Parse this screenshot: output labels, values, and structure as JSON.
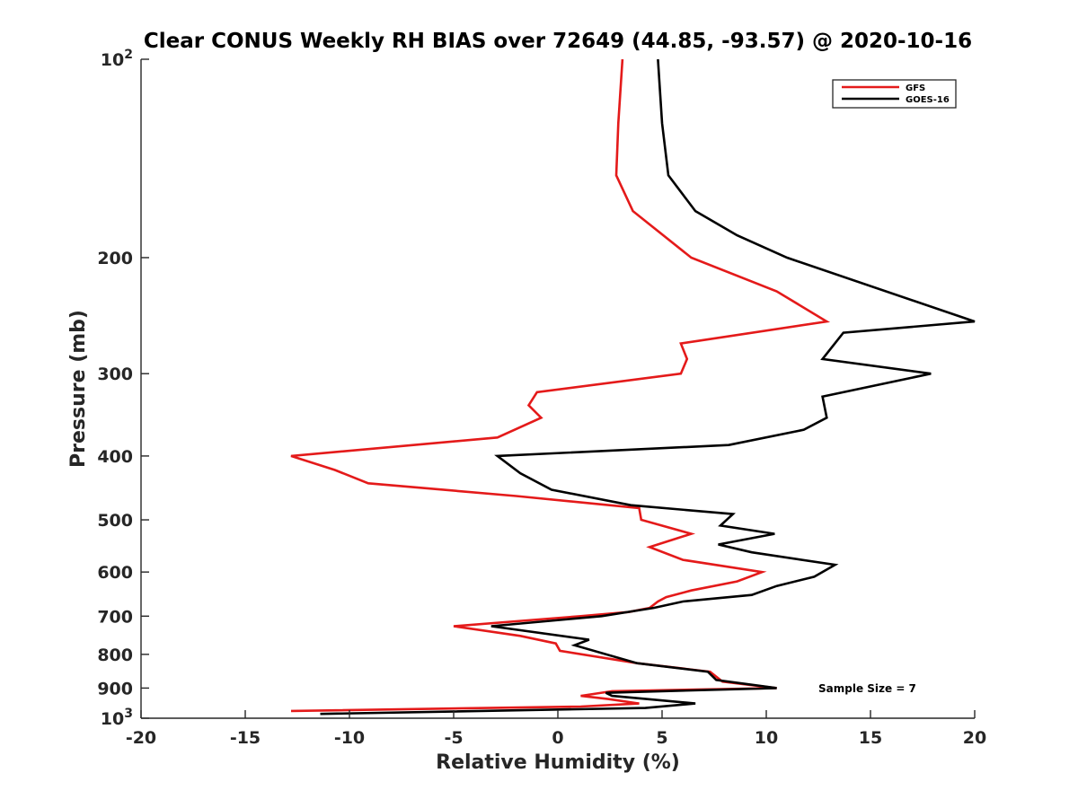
{
  "chart_data": {
    "type": "line",
    "title": "Clear CONUS Weekly RH BIAS over 72649 (44.85, -93.57) @ 2020-10-16",
    "xlabel": "Relative Humidity (%)",
    "ylabel": "Pressure (mb)",
    "xlim": [
      -20,
      20
    ],
    "ylim": [
      100,
      1000
    ],
    "y_scale": "log",
    "y_reversed": true,
    "x_ticks": [
      "-20",
      "-15",
      "-10",
      "-5",
      "0",
      "5",
      "10",
      "15",
      "20"
    ],
    "y_ticks": [
      {
        "value": 100,
        "label": "10",
        "sup": "2"
      },
      {
        "value": 200,
        "label": "200",
        "sup": ""
      },
      {
        "value": 300,
        "label": "300",
        "sup": ""
      },
      {
        "value": 400,
        "label": "400",
        "sup": ""
      },
      {
        "value": 500,
        "label": "500",
        "sup": ""
      },
      {
        "value": 600,
        "label": "600",
        "sup": ""
      },
      {
        "value": 700,
        "label": "700",
        "sup": ""
      },
      {
        "value": 800,
        "label": "800",
        "sup": ""
      },
      {
        "value": 900,
        "label": "900",
        "sup": ""
      },
      {
        "value": 1000,
        "label": "10",
        "sup": "3"
      }
    ],
    "grid": false,
    "legend_position": "top-right",
    "series": [
      {
        "name": "GFS",
        "color": "#e41a1a",
        "points": [
          [
            3.1,
            100
          ],
          [
            2.9,
            125
          ],
          [
            2.8,
            150
          ],
          [
            3.6,
            170
          ],
          [
            6.4,
            200
          ],
          [
            10.5,
            225
          ],
          [
            12.9,
            250
          ],
          [
            5.9,
            270
          ],
          [
            6.2,
            285
          ],
          [
            5.9,
            300
          ],
          [
            -1.0,
            320
          ],
          [
            -1.4,
            335
          ],
          [
            -0.8,
            350
          ],
          [
            -2.9,
            375
          ],
          [
            -12.8,
            400
          ],
          [
            -10.7,
            420
          ],
          [
            -9.1,
            440
          ],
          [
            -2.0,
            460
          ],
          [
            3.9,
            480
          ],
          [
            4.0,
            500
          ],
          [
            6.4,
            525
          ],
          [
            4.4,
            550
          ],
          [
            6.0,
            575
          ],
          [
            9.8,
            600
          ],
          [
            8.6,
            620
          ],
          [
            6.4,
            640
          ],
          [
            5.2,
            655
          ],
          [
            4.8,
            665
          ],
          [
            4.4,
            680
          ],
          [
            3.4,
            690
          ],
          [
            1.1,
            700
          ],
          [
            -5.0,
            725
          ],
          [
            -1.8,
            750
          ],
          [
            -0.1,
            770
          ],
          [
            0.1,
            790
          ],
          [
            3.8,
            825
          ],
          [
            7.3,
            850
          ],
          [
            7.9,
            880
          ],
          [
            10.5,
            900
          ],
          [
            2.6,
            910
          ],
          [
            1.1,
            925
          ],
          [
            2.4,
            935
          ],
          [
            3.9,
            950
          ],
          [
            1.1,
            960
          ],
          [
            -12.8,
            975
          ]
        ]
      },
      {
        "name": "GOES-16",
        "color": "#000000",
        "points": [
          [
            4.8,
            100
          ],
          [
            5.0,
            125
          ],
          [
            5.3,
            150
          ],
          [
            6.6,
            170
          ],
          [
            8.6,
            185
          ],
          [
            11.0,
            200
          ],
          [
            20.0,
            250
          ],
          [
            13.7,
            260
          ],
          [
            12.7,
            285
          ],
          [
            17.9,
            300
          ],
          [
            12.7,
            325
          ],
          [
            12.9,
            350
          ],
          [
            11.8,
            365
          ],
          [
            8.2,
            385
          ],
          [
            -2.9,
            400
          ],
          [
            -1.8,
            425
          ],
          [
            -0.3,
            450
          ],
          [
            3.5,
            475
          ],
          [
            8.4,
            490
          ],
          [
            7.8,
            510
          ],
          [
            10.4,
            525
          ],
          [
            7.7,
            545
          ],
          [
            9.3,
            560
          ],
          [
            13.3,
            585
          ],
          [
            12.3,
            610
          ],
          [
            10.5,
            630
          ],
          [
            9.3,
            650
          ],
          [
            6.0,
            665
          ],
          [
            4.6,
            680
          ],
          [
            2.1,
            700
          ],
          [
            -3.2,
            725
          ],
          [
            1.5,
            760
          ],
          [
            0.8,
            775
          ],
          [
            3.8,
            825
          ],
          [
            7.2,
            850
          ],
          [
            7.6,
            875
          ],
          [
            10.5,
            900
          ],
          [
            2.3,
            915
          ],
          [
            2.6,
            925
          ],
          [
            6.6,
            950
          ],
          [
            4.2,
            965
          ],
          [
            -11.4,
            985
          ]
        ]
      }
    ],
    "annotation": "Sample Size = 7"
  }
}
